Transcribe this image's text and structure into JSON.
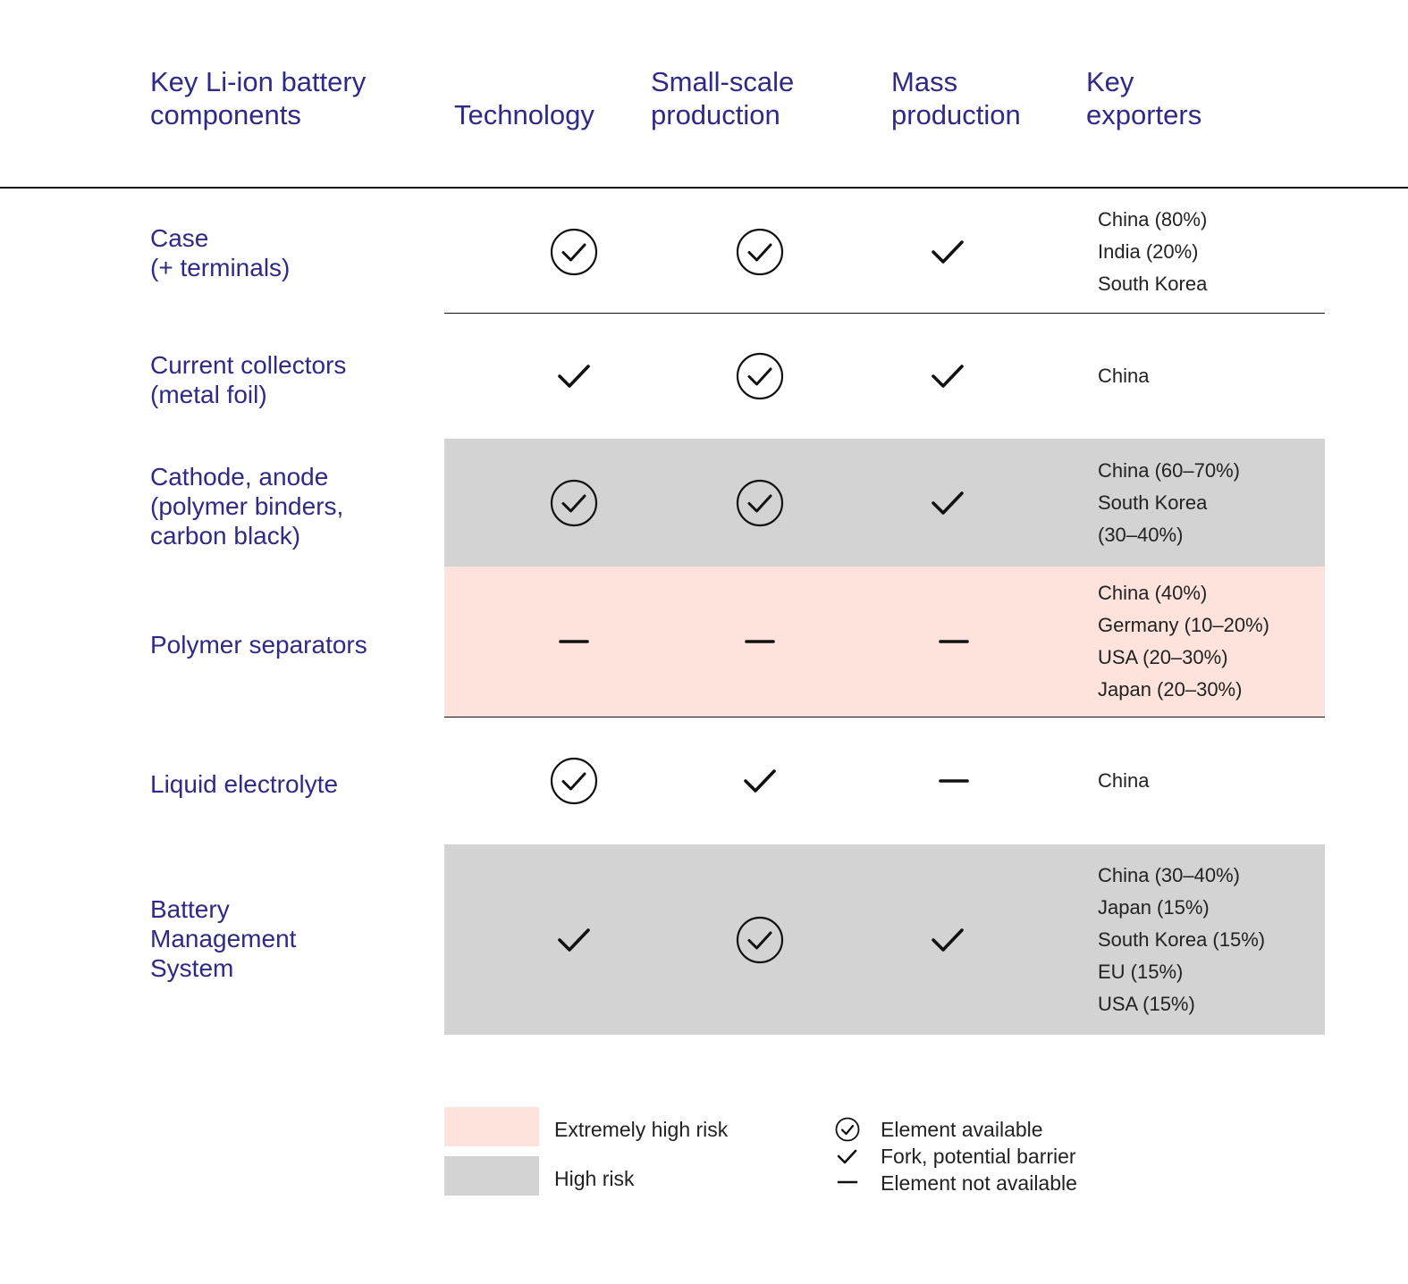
{
  "header": {
    "component": "Key Li-ion battery\ncomponents",
    "technology": "Technology",
    "small_scale": "Small-scale\nproduction",
    "mass": "Mass\nproduction",
    "exporters": "Key\nexporters"
  },
  "colors": {
    "header_text": "#2e2a85",
    "extremely_high_risk": "#fde3db",
    "high_risk": "#d4d3d4"
  },
  "rows": [
    {
      "component": "Case\n(+ terminals)",
      "risk": "none",
      "technology": "available",
      "small_scale": "available",
      "mass": "fork",
      "exporters": [
        "China (80%)",
        "India (20%)",
        "South Korea"
      ]
    },
    {
      "component": "Current collectors\n(metal foil)",
      "risk": "none",
      "technology": "fork",
      "small_scale": "available",
      "mass": "fork",
      "exporters": [
        "China"
      ]
    },
    {
      "component": "Cathode, anode\n(polymer binders,\ncarbon black)",
      "risk": "high",
      "technology": "available",
      "small_scale": "available",
      "mass": "fork",
      "exporters": [
        "China (60–70%)",
        "South Korea",
        "(30–40%)"
      ]
    },
    {
      "component": "Polymer separators",
      "risk": "extreme",
      "technology": "not_available",
      "small_scale": "not_available",
      "mass": "not_available",
      "exporters": [
        "China (40%)",
        "Germany (10–20%)",
        "USA (20–30%)",
        "Japan (20–30%)"
      ]
    },
    {
      "component": "Liquid electrolyte",
      "risk": "none",
      "technology": "available",
      "small_scale": "fork",
      "mass": "not_available",
      "exporters": [
        "China"
      ]
    },
    {
      "component": "Battery\nManagement\nSystem",
      "risk": "high",
      "technology": "fork",
      "small_scale": "available",
      "mass": "fork",
      "exporters": [
        "China (30–40%)",
        "Japan (15%)",
        "South Korea (15%)",
        "EU (15%)",
        "USA (15%)"
      ]
    }
  ],
  "legend": {
    "extremely_high_risk": "Extremely high risk",
    "high_risk": "High risk",
    "available": "Element available",
    "fork": "Fork, potential barrier",
    "not_available": "Element not available"
  }
}
